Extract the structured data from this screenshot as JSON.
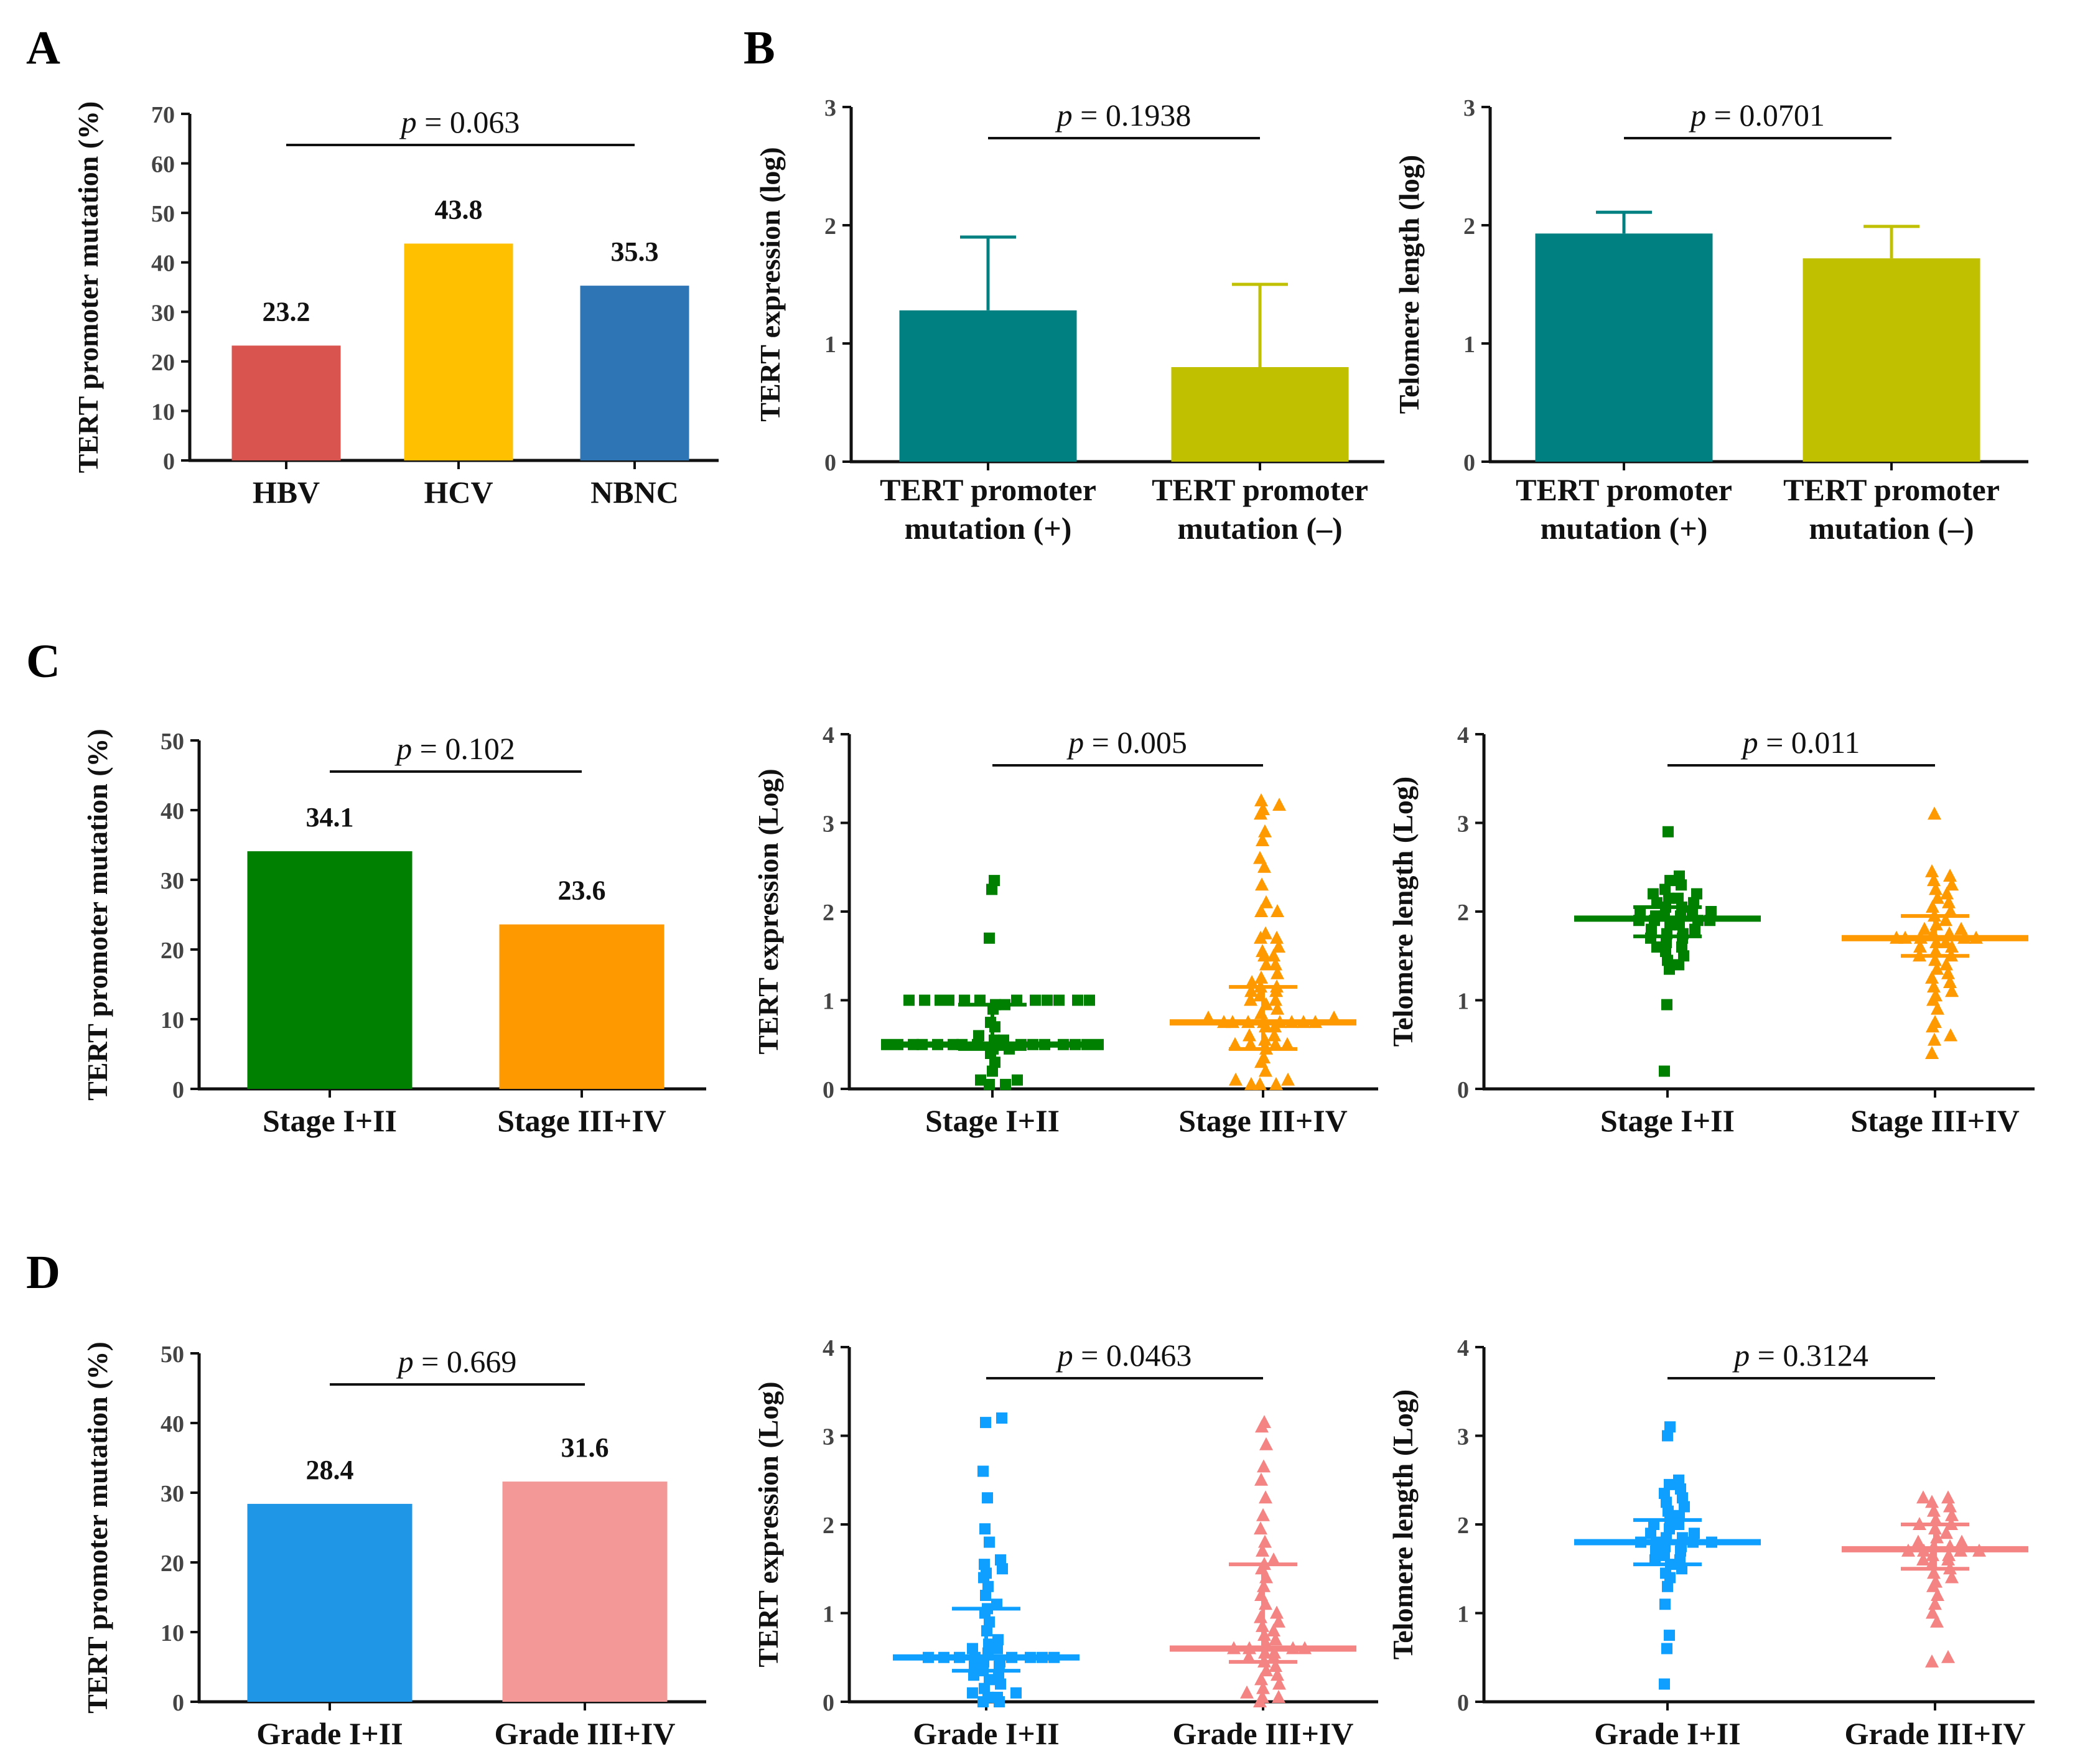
{
  "panel_letters": [
    "A",
    "B",
    "C",
    "D"
  ],
  "colors": {
    "red": "#d9534f",
    "yellow": "#ffc000",
    "blue": "#2e75b6",
    "teal": "#008080",
    "olive": "#c0c000",
    "green": "#008000",
    "orange": "#ff9900",
    "sky": "#1f97e6",
    "pink": "#f49797",
    "scatter_blue": "#0fa0ff",
    "scatter_pink": "#f48484"
  },
  "chart_data": [
    {
      "id": "A",
      "type": "bar",
      "ylabel": "TERT promoter mutation (%)",
      "ylim": [
        0,
        70
      ],
      "yticks": [
        0,
        10,
        20,
        30,
        40,
        50,
        60,
        70
      ],
      "categories": [
        "HBV",
        "HCV",
        "NBNC"
      ],
      "values": [
        23.2,
        43.8,
        35.3
      ],
      "value_labels": [
        "23.2",
        "43.8",
        "35.3"
      ],
      "colors": [
        "#d9534f",
        "#ffc000",
        "#2e75b6"
      ],
      "p_prefix": "p",
      "p_value": "= 0.063"
    },
    {
      "id": "B1",
      "type": "bar",
      "ylabel": "TERT expression (log)",
      "ylim": [
        0,
        3
      ],
      "yticks": [
        0,
        1,
        2,
        3
      ],
      "categories": [
        [
          "TERT promoter",
          "mutation (+)"
        ],
        [
          "TERT promoter",
          "mutation (–)"
        ]
      ],
      "values": [
        1.28,
        0.8
      ],
      "errors": [
        0.62,
        0.7
      ],
      "colors": [
        "#008080",
        "#c0c000"
      ],
      "p_prefix": "p",
      "p_value": "= 0.1938"
    },
    {
      "id": "B2",
      "type": "bar",
      "ylabel": "Telomere length (log)",
      "ylim": [
        0,
        3
      ],
      "yticks": [
        0,
        1,
        2,
        3
      ],
      "categories": [
        [
          "TERT promoter",
          "mutation (+)"
        ],
        [
          "TERT promoter",
          "mutation (–)"
        ]
      ],
      "values": [
        1.93,
        1.72
      ],
      "errors": [
        0.18,
        0.27
      ],
      "colors": [
        "#008080",
        "#c0c000"
      ],
      "p_prefix": "p",
      "p_value": "= 0.0701"
    },
    {
      "id": "C1",
      "type": "bar",
      "ylabel": "TERT promoter mutation (%)",
      "ylim": [
        0,
        50
      ],
      "yticks": [
        0,
        10,
        20,
        30,
        40,
        50
      ],
      "categories": [
        "Stage I+II",
        "Stage III+IV"
      ],
      "values": [
        34.1,
        23.6
      ],
      "value_labels": [
        "34.1",
        "23.6"
      ],
      "colors": [
        "#008000",
        "#ff9900"
      ],
      "p_prefix": "p",
      "p_value": "= 0.102"
    },
    {
      "id": "C2",
      "type": "scatter",
      "ylabel": "TERT expression (Log)",
      "ylim": [
        0,
        4
      ],
      "yticks": [
        0,
        1,
        2,
        3,
        4
      ],
      "categories": [
        "Stage I+II",
        "Stage III+IV"
      ],
      "markers": [
        "square",
        "triangle"
      ],
      "colors": [
        "#008000",
        "#ff9900"
      ],
      "groups": [
        {
          "median": 0.5,
          "q1": 0.45,
          "q3": 0.95,
          "values": [
            0.05,
            0.05,
            0.1,
            0.1,
            0.2,
            0.3,
            0.4,
            0.45,
            0.45,
            0.5,
            0.5,
            0.5,
            0.5,
            0.5,
            0.5,
            0.5,
            0.5,
            0.5,
            0.5,
            0.5,
            0.5,
            0.5,
            0.5,
            0.5,
            0.55,
            0.55,
            0.6,
            0.7,
            0.75,
            0.9,
            0.95,
            0.95,
            1.0,
            1.0,
            1.0,
            1.0,
            1.0,
            1.0,
            1.0,
            1.0,
            1.0,
            1.0,
            1.0,
            1.0,
            1.7,
            2.25,
            2.35
          ]
        },
        {
          "median": 0.75,
          "q1": 0.45,
          "q3": 1.15,
          "values": [
            0.05,
            0.05,
            0.05,
            0.1,
            0.1,
            0.2,
            0.3,
            0.35,
            0.45,
            0.5,
            0.5,
            0.5,
            0.5,
            0.55,
            0.6,
            0.6,
            0.7,
            0.7,
            0.75,
            0.75,
            0.75,
            0.75,
            0.75,
            0.75,
            0.75,
            0.75,
            0.8,
            0.8,
            0.85,
            0.9,
            0.95,
            1.0,
            1.0,
            1.05,
            1.1,
            1.1,
            1.15,
            1.15,
            1.2,
            1.25,
            1.3,
            1.4,
            1.4,
            1.5,
            1.5,
            1.55,
            1.6,
            1.7,
            1.7,
            1.75,
            2.0,
            2.0,
            2.1,
            2.3,
            2.5,
            2.6,
            2.8,
            2.9,
            3.1,
            3.15,
            3.2,
            3.25
          ]
        }
      ],
      "p_prefix": "p",
      "p_value": "= 0.005"
    },
    {
      "id": "C3",
      "type": "scatter",
      "ylabel": "Telomere length (Log)",
      "ylim": [
        0,
        4
      ],
      "yticks": [
        0,
        1,
        2,
        3,
        4
      ],
      "categories": [
        "Stage I+II",
        "Stage III+IV"
      ],
      "markers": [
        "square",
        "triangle"
      ],
      "colors": [
        "#008000",
        "#ff9900"
      ],
      "groups": [
        {
          "median": 1.92,
          "q1": 1.72,
          "q3": 2.05,
          "values": [
            0.2,
            0.95,
            1.35,
            1.4,
            1.45,
            1.5,
            1.55,
            1.6,
            1.6,
            1.65,
            1.7,
            1.7,
            1.75,
            1.75,
            1.8,
            1.8,
            1.85,
            1.85,
            1.9,
            1.9,
            1.9,
            1.9,
            1.95,
            1.95,
            1.95,
            2.0,
            2.0,
            2.0,
            2.05,
            2.05,
            2.1,
            2.1,
            2.15,
            2.15,
            2.2,
            2.2,
            2.25,
            2.3,
            2.35,
            2.4,
            2.9
          ]
        },
        {
          "median": 1.7,
          "q1": 1.5,
          "q3": 1.95,
          "values": [
            0.4,
            0.55,
            0.6,
            0.7,
            0.75,
            0.9,
            1.0,
            1.05,
            1.1,
            1.15,
            1.2,
            1.25,
            1.3,
            1.35,
            1.4,
            1.45,
            1.5,
            1.5,
            1.55,
            1.6,
            1.6,
            1.65,
            1.65,
            1.7,
            1.7,
            1.7,
            1.7,
            1.7,
            1.75,
            1.75,
            1.8,
            1.8,
            1.85,
            1.9,
            1.95,
            2.0,
            2.05,
            2.1,
            2.15,
            2.2,
            2.25,
            2.3,
            2.35,
            2.4,
            2.45,
            3.1
          ]
        }
      ],
      "p_prefix": "p",
      "p_value": "= 0.011"
    },
    {
      "id": "D1",
      "type": "bar",
      "ylabel": "TERT promoter mutation (%)",
      "ylim": [
        0,
        50
      ],
      "yticks": [
        0,
        10,
        20,
        30,
        40,
        50
      ],
      "categories": [
        "Grade I+II",
        "Grade III+IV"
      ],
      "values": [
        28.4,
        31.6
      ],
      "value_labels": [
        "28.4",
        "31.6"
      ],
      "colors": [
        "#1f97e6",
        "#f49797"
      ],
      "p_prefix": "p",
      "p_value": "= 0.669"
    },
    {
      "id": "D2",
      "type": "scatter",
      "ylabel": "TERT expression (Log)",
      "ylim": [
        0,
        4
      ],
      "yticks": [
        0,
        1,
        2,
        3,
        4
      ],
      "categories": [
        "Grade I+II",
        "Grade III+IV"
      ],
      "markers": [
        "square",
        "triangle"
      ],
      "colors": [
        "#0fa0ff",
        "#f48484"
      ],
      "groups": [
        {
          "median": 0.5,
          "q1": 0.35,
          "q3": 1.05,
          "values": [
            0.0,
            0.0,
            0.05,
            0.05,
            0.1,
            0.1,
            0.15,
            0.2,
            0.25,
            0.3,
            0.3,
            0.35,
            0.4,
            0.4,
            0.45,
            0.45,
            0.5,
            0.5,
            0.5,
            0.5,
            0.5,
            0.5,
            0.5,
            0.5,
            0.55,
            0.6,
            0.6,
            0.65,
            0.7,
            0.8,
            0.9,
            1.0,
            1.05,
            1.1,
            1.2,
            1.3,
            1.4,
            1.45,
            1.5,
            1.55,
            1.6,
            1.8,
            1.95,
            2.3,
            2.6,
            3.15,
            3.2
          ]
        },
        {
          "median": 0.6,
          "q1": 0.45,
          "q3": 1.55,
          "values": [
            0.0,
            0.05,
            0.05,
            0.1,
            0.15,
            0.2,
            0.25,
            0.3,
            0.35,
            0.4,
            0.45,
            0.5,
            0.5,
            0.55,
            0.55,
            0.6,
            0.6,
            0.6,
            0.6,
            0.65,
            0.7,
            0.75,
            0.8,
            0.85,
            0.9,
            0.95,
            1.0,
            1.1,
            1.2,
            1.3,
            1.4,
            1.5,
            1.55,
            1.6,
            1.7,
            1.8,
            1.95,
            2.1,
            2.3,
            2.5,
            2.65,
            2.9,
            3.1,
            3.15
          ]
        }
      ],
      "p_prefix": "p",
      "p_value": "= 0.0463"
    },
    {
      "id": "D3",
      "type": "scatter",
      "ylabel": "Telomere length (Log)",
      "ylim": [
        0,
        4
      ],
      "yticks": [
        0,
        1,
        2,
        3,
        4
      ],
      "categories": [
        "Grade I+II",
        "Grade III+IV"
      ],
      "markers": [
        "square",
        "triangle"
      ],
      "colors": [
        "#0fa0ff",
        "#f48484"
      ],
      "groups": [
        {
          "median": 1.8,
          "q1": 1.55,
          "q3": 2.05,
          "values": [
            0.2,
            0.6,
            0.75,
            1.1,
            1.3,
            1.4,
            1.45,
            1.5,
            1.55,
            1.6,
            1.6,
            1.65,
            1.7,
            1.7,
            1.75,
            1.75,
            1.8,
            1.8,
            1.8,
            1.8,
            1.85,
            1.85,
            1.9,
            1.9,
            1.95,
            2.0,
            2.0,
            2.05,
            2.1,
            2.15,
            2.2,
            2.25,
            2.3,
            2.35,
            2.4,
            2.45,
            2.5,
            3.0,
            3.1
          ]
        },
        {
          "median": 1.72,
          "q1": 1.5,
          "q3": 2.0,
          "values": [
            0.45,
            0.5,
            0.9,
            1.0,
            1.1,
            1.2,
            1.3,
            1.35,
            1.4,
            1.45,
            1.5,
            1.55,
            1.6,
            1.6,
            1.65,
            1.65,
            1.7,
            1.7,
            1.7,
            1.7,
            1.75,
            1.75,
            1.8,
            1.8,
            1.85,
            1.9,
            1.95,
            2.0,
            2.0,
            2.05,
            2.1,
            2.15,
            2.2,
            2.25,
            2.3,
            2.3
          ]
        }
      ],
      "p_prefix": "p",
      "p_value": "= 0.3124"
    }
  ]
}
